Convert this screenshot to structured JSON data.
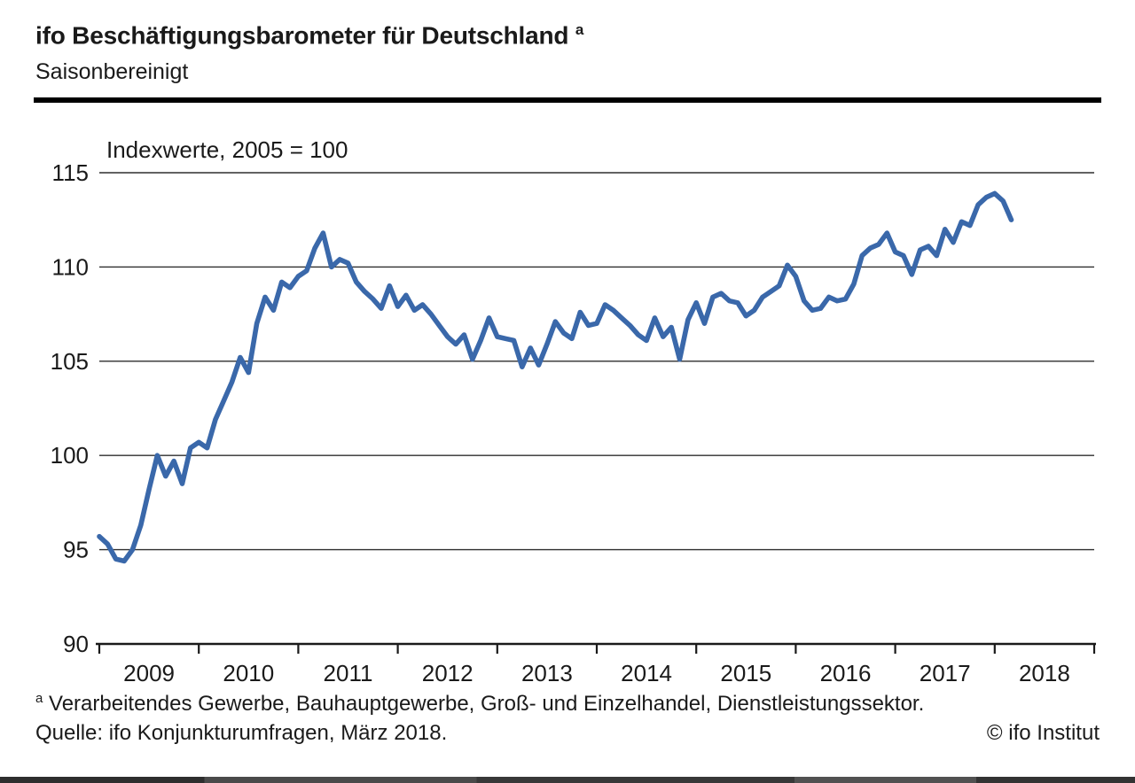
{
  "page": {
    "header": {
      "title": "ifo Beschäftigungsbarometer für Deutschland",
      "title_footnote_marker": "a",
      "subtitle": "Saisonbereinigt"
    },
    "footer": {
      "footnote_marker": "a",
      "footnote_text": " Verarbeitendes Gewerbe, Bauhauptgewerbe, Groß- und Einzelhandel, Dienstleistungssektor.",
      "source": "Quelle: ifo Konjunkturumfragen, März 2018.",
      "copyright": "© ifo Institut"
    }
  },
  "chart_data": {
    "type": "line",
    "note": "Indexwerte, 2005 = 100",
    "ylabel": "Indexwerte, 2005 = 100",
    "ylim": [
      90,
      115
    ],
    "yticks": [
      90,
      95,
      100,
      105,
      110,
      115
    ],
    "grid": "horizontal",
    "legend": "none",
    "x_start": "2009-01",
    "x_end": "2018-03",
    "xtick_labels": [
      "2009",
      "2010",
      "2011",
      "2012",
      "2013",
      "2014",
      "2015",
      "2016",
      "2017",
      "2018"
    ],
    "series": [
      {
        "name": "ifo Beschäftigungsbarometer Deutschland, saisonbereinigt",
        "color": "#3a68aa",
        "frequency": "monthly",
        "values": [
          95.7,
          95.3,
          94.5,
          94.4,
          95.0,
          96.3,
          98.2,
          100.0,
          98.9,
          99.7,
          98.5,
          100.4,
          100.7,
          100.4,
          101.9,
          102.9,
          103.9,
          105.2,
          104.4,
          107.0,
          108.4,
          107.7,
          109.2,
          108.9,
          109.5,
          109.8,
          111.0,
          111.8,
          110.0,
          110.4,
          110.2,
          109.2,
          108.7,
          108.3,
          107.8,
          109.0,
          107.9,
          108.5,
          107.7,
          108.0,
          107.5,
          106.9,
          106.3,
          105.9,
          106.4,
          105.1,
          106.1,
          107.3,
          106.3,
          106.2,
          106.1,
          104.7,
          105.7,
          104.8,
          105.9,
          107.1,
          106.5,
          106.2,
          107.6,
          106.9,
          107.0,
          108.0,
          107.7,
          107.3,
          106.9,
          106.4,
          106.1,
          107.3,
          106.3,
          106.8,
          105.1,
          107.2,
          108.1,
          107.0,
          108.4,
          108.6,
          108.2,
          108.1,
          107.4,
          107.7,
          108.4,
          108.7,
          109.0,
          110.1,
          109.5,
          108.2,
          107.7,
          107.8,
          108.4,
          108.2,
          108.3,
          109.1,
          110.6,
          111.0,
          111.2,
          111.8,
          110.8,
          110.6,
          109.6,
          110.9,
          111.1,
          110.6,
          112.0,
          111.3,
          112.4,
          112.2,
          113.3,
          113.7,
          113.9,
          113.5,
          112.5
        ]
      }
    ],
    "colors": {
      "line": "#3a68aa",
      "grid": "#2e2e2e",
      "axis": "#1a1a1a",
      "text": "#1a1a1a"
    }
  }
}
